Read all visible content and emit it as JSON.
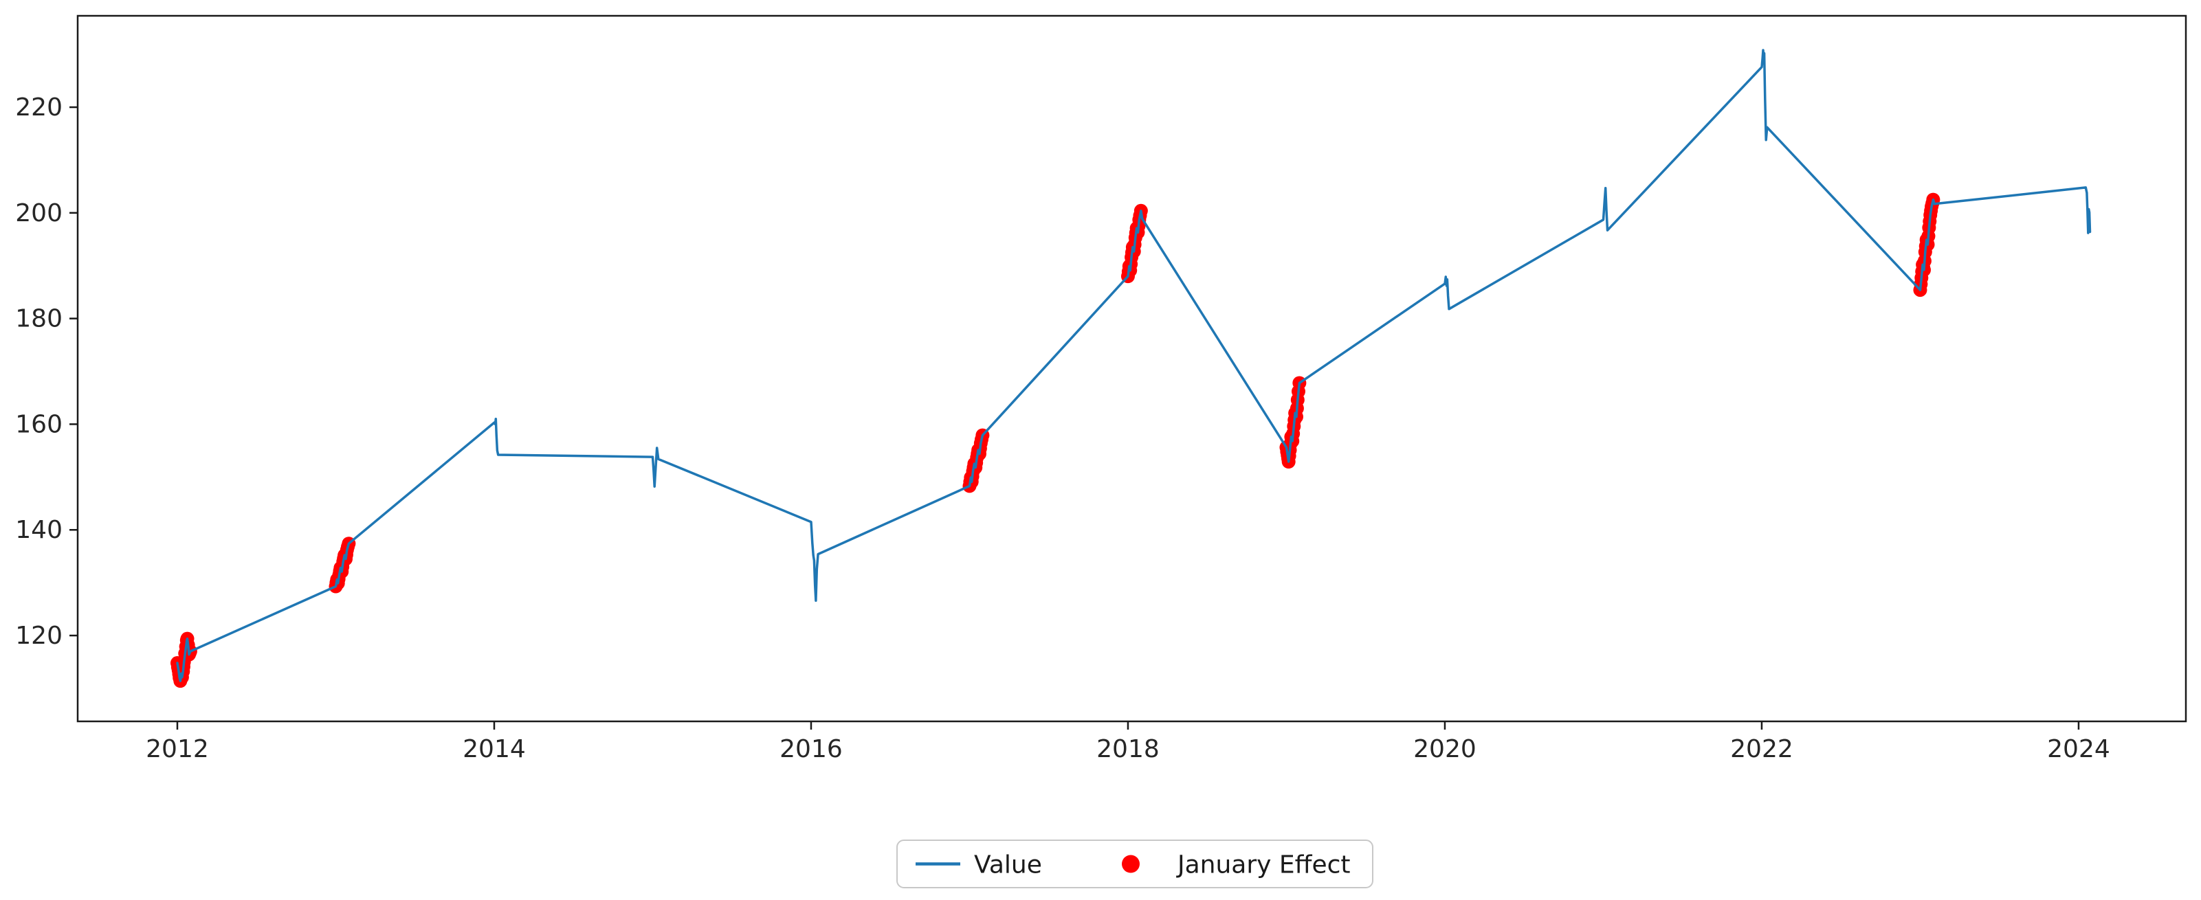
{
  "figure": {
    "background": "#ffffff",
    "spine_color": "#1a1a1a",
    "tick_label_color": "#262626"
  },
  "chart_data": {
    "type": "line",
    "title": "",
    "xlabel": "",
    "ylabel": "",
    "grid": false,
    "x_ticks": [
      2012,
      2014,
      2016,
      2018,
      2020,
      2022,
      2024
    ],
    "y_ticks": [
      120,
      140,
      160,
      180,
      200,
      220
    ],
    "xlim": [
      2011.371,
      2024.677
    ],
    "ylim": [
      103.75,
      237.3
    ],
    "legend": {
      "position": "bottom-center",
      "entries": [
        {
          "label": "Value",
          "type": "line",
          "color": "#1f77b4"
        },
        {
          "label": "January Effect",
          "type": "dot",
          "color": "#ff0000"
        }
      ]
    },
    "series": [
      {
        "name": "Value",
        "color": "#1f77b4",
        "line_width": 3.5,
        "points": [
          [
            2012.0,
            114.8
          ],
          [
            2012.008,
            113.4
          ],
          [
            2012.014,
            112.0
          ],
          [
            2012.019,
            111.4
          ],
          [
            2012.025,
            112.8
          ],
          [
            2012.03,
            112.1
          ],
          [
            2012.036,
            113.2
          ],
          [
            2012.042,
            115.0
          ],
          [
            2012.049,
            116.6
          ],
          [
            2012.055,
            117.9
          ],
          [
            2012.06,
            119.1
          ],
          [
            2012.063,
            119.4
          ],
          [
            2012.068,
            118.2
          ],
          [
            2012.074,
            116.4
          ],
          [
            2012.082,
            117.0
          ],
          [
            2013.0,
            129.3
          ],
          [
            2013.008,
            130.6
          ],
          [
            2013.014,
            129.9
          ],
          [
            2013.022,
            131.5
          ],
          [
            2013.03,
            132.8
          ],
          [
            2013.038,
            132.1
          ],
          [
            2013.047,
            134.0
          ],
          [
            2013.055,
            135.2
          ],
          [
            2013.063,
            134.5
          ],
          [
            2013.071,
            136.2
          ],
          [
            2013.082,
            137.4
          ],
          [
            2014.0,
            160.3
          ],
          [
            2014.006,
            160.0
          ],
          [
            2014.01,
            161.0
          ],
          [
            2014.014,
            158.0
          ],
          [
            2014.019,
            155.0
          ],
          [
            2014.025,
            154.2
          ],
          [
            2015.0,
            153.8
          ],
          [
            2015.006,
            151.2
          ],
          [
            2015.012,
            148.2
          ],
          [
            2015.019,
            151.8
          ],
          [
            2015.027,
            155.5
          ],
          [
            2015.036,
            153.4
          ],
          [
            2016.0,
            141.5
          ],
          [
            2016.008,
            137.5
          ],
          [
            2016.014,
            135.2
          ],
          [
            2016.019,
            134.2
          ],
          [
            2016.025,
            129.5
          ],
          [
            2016.03,
            126.6
          ],
          [
            2016.036,
            132.5
          ],
          [
            2016.044,
            135.4
          ],
          [
            2017.0,
            148.3
          ],
          [
            2017.008,
            149.9
          ],
          [
            2017.014,
            149.1
          ],
          [
            2017.022,
            151.1
          ],
          [
            2017.03,
            152.5
          ],
          [
            2017.038,
            151.8
          ],
          [
            2017.047,
            153.7
          ],
          [
            2017.055,
            155.1
          ],
          [
            2017.063,
            154.4
          ],
          [
            2017.071,
            156.4
          ],
          [
            2017.082,
            157.9
          ],
          [
            2018.0,
            188.0
          ],
          [
            2018.008,
            189.9
          ],
          [
            2018.014,
            189.1
          ],
          [
            2018.022,
            191.6
          ],
          [
            2018.03,
            193.5
          ],
          [
            2018.038,
            192.7
          ],
          [
            2018.047,
            195.3
          ],
          [
            2018.055,
            197.1
          ],
          [
            2018.063,
            196.3
          ],
          [
            2018.071,
            198.7
          ],
          [
            2018.082,
            200.4
          ],
          [
            2018.09,
            198.9
          ],
          [
            2019.0,
            155.6
          ],
          [
            2019.008,
            154.1
          ],
          [
            2019.014,
            152.9
          ],
          [
            2019.022,
            155.1
          ],
          [
            2019.03,
            157.6
          ],
          [
            2019.038,
            156.8
          ],
          [
            2019.047,
            159.6
          ],
          [
            2019.055,
            162.1
          ],
          [
            2019.063,
            161.4
          ],
          [
            2019.071,
            164.6
          ],
          [
            2019.082,
            167.8
          ],
          [
            2020.0,
            186.6
          ],
          [
            2020.006,
            187.9
          ],
          [
            2020.011,
            186.2
          ],
          [
            2020.015,
            187.4
          ],
          [
            2020.02,
            184.3
          ],
          [
            2020.026,
            181.8
          ],
          [
            2021.0,
            198.7
          ],
          [
            2021.008,
            202.2
          ],
          [
            2021.014,
            204.7
          ],
          [
            2021.02,
            200.3
          ],
          [
            2021.026,
            196.7
          ],
          [
            2022.0,
            227.6
          ],
          [
            2022.005,
            229.2
          ],
          [
            2022.009,
            230.8
          ],
          [
            2022.013,
            229.4
          ],
          [
            2022.016,
            230.2
          ],
          [
            2022.021,
            221.5
          ],
          [
            2022.027,
            213.8
          ],
          [
            2022.034,
            216.2
          ],
          [
            2023.0,
            185.4
          ],
          [
            2023.008,
            187.7
          ],
          [
            2023.016,
            190.2
          ],
          [
            2023.024,
            189.2
          ],
          [
            2023.032,
            192.6
          ],
          [
            2023.04,
            194.9
          ],
          [
            2023.048,
            194.0
          ],
          [
            2023.056,
            197.2
          ],
          [
            2023.064,
            199.6
          ],
          [
            2023.072,
            201.2
          ],
          [
            2023.082,
            202.5
          ],
          [
            2023.09,
            201.7
          ],
          [
            2024.045,
            204.8
          ],
          [
            2024.052,
            203.8
          ],
          [
            2024.056,
            200.2
          ],
          [
            2024.06,
            196.2
          ],
          [
            2024.064,
            200.7
          ],
          [
            2024.068,
            200.1
          ],
          [
            2024.072,
            196.4
          ]
        ]
      }
    ],
    "scatter": {
      "name": "January Effect",
      "color": "#ff0000",
      "marker_radius": 10,
      "points": [
        [
          2012.0,
          114.8
        ],
        [
          2012.004,
          114.0
        ],
        [
          2012.008,
          113.4
        ],
        [
          2012.011,
          112.7
        ],
        [
          2012.014,
          112.0
        ],
        [
          2012.019,
          111.4
        ],
        [
          2012.022,
          112.1
        ],
        [
          2012.025,
          112.8
        ],
        [
          2012.03,
          112.1
        ],
        [
          2012.036,
          113.2
        ],
        [
          2012.039,
          114.1
        ],
        [
          2012.042,
          115.0
        ],
        [
          2012.049,
          116.6
        ],
        [
          2012.055,
          117.9
        ],
        [
          2012.06,
          119.1
        ],
        [
          2012.063,
          119.4
        ],
        [
          2012.068,
          118.2
        ],
        [
          2012.071,
          117.3
        ],
        [
          2012.074,
          116.4
        ],
        [
          2012.078,
          116.7
        ],
        [
          2012.082,
          117.0
        ],
        [
          2013.0,
          129.3
        ],
        [
          2013.004,
          130.0
        ],
        [
          2013.008,
          130.6
        ],
        [
          2013.011,
          130.2
        ],
        [
          2013.014,
          129.9
        ],
        [
          2013.018,
          130.7
        ],
        [
          2013.022,
          131.5
        ],
        [
          2013.026,
          132.2
        ],
        [
          2013.03,
          132.8
        ],
        [
          2013.034,
          132.4
        ],
        [
          2013.038,
          132.1
        ],
        [
          2013.042,
          133.0
        ],
        [
          2013.047,
          134.0
        ],
        [
          2013.051,
          134.6
        ],
        [
          2013.055,
          135.2
        ],
        [
          2013.059,
          134.8
        ],
        [
          2013.063,
          134.5
        ],
        [
          2013.067,
          135.3
        ],
        [
          2013.071,
          136.2
        ],
        [
          2013.076,
          136.8
        ],
        [
          2013.082,
          137.4
        ],
        [
          2017.0,
          148.3
        ],
        [
          2017.004,
          149.1
        ],
        [
          2017.008,
          149.9
        ],
        [
          2017.011,
          149.5
        ],
        [
          2017.014,
          149.1
        ],
        [
          2017.018,
          150.1
        ],
        [
          2017.022,
          151.1
        ],
        [
          2017.026,
          151.8
        ],
        [
          2017.03,
          152.5
        ],
        [
          2017.034,
          152.1
        ],
        [
          2017.038,
          151.8
        ],
        [
          2017.042,
          152.7
        ],
        [
          2017.047,
          153.7
        ],
        [
          2017.051,
          154.4
        ],
        [
          2017.055,
          155.1
        ],
        [
          2017.059,
          154.7
        ],
        [
          2017.063,
          154.4
        ],
        [
          2017.067,
          155.4
        ],
        [
          2017.071,
          156.4
        ],
        [
          2017.076,
          157.1
        ],
        [
          2017.082,
          157.9
        ],
        [
          2018.0,
          188.0
        ],
        [
          2018.004,
          188.9
        ],
        [
          2018.008,
          189.9
        ],
        [
          2018.011,
          189.5
        ],
        [
          2018.014,
          189.1
        ],
        [
          2018.018,
          190.3
        ],
        [
          2018.022,
          191.6
        ],
        [
          2018.026,
          192.5
        ],
        [
          2018.03,
          193.5
        ],
        [
          2018.034,
          193.1
        ],
        [
          2018.038,
          192.7
        ],
        [
          2018.042,
          194.0
        ],
        [
          2018.047,
          195.3
        ],
        [
          2018.051,
          196.2
        ],
        [
          2018.055,
          197.1
        ],
        [
          2018.059,
          196.7
        ],
        [
          2018.063,
          196.3
        ],
        [
          2018.067,
          197.5
        ],
        [
          2018.071,
          198.7
        ],
        [
          2018.076,
          199.5
        ],
        [
          2018.082,
          200.4
        ],
        [
          2019.0,
          155.6
        ],
        [
          2019.004,
          154.8
        ],
        [
          2019.008,
          154.1
        ],
        [
          2019.011,
          153.5
        ],
        [
          2019.014,
          152.9
        ],
        [
          2019.018,
          154.0
        ],
        [
          2019.022,
          155.1
        ],
        [
          2019.026,
          156.3
        ],
        [
          2019.03,
          157.6
        ],
        [
          2019.034,
          157.2
        ],
        [
          2019.038,
          156.8
        ],
        [
          2019.042,
          158.2
        ],
        [
          2019.047,
          159.6
        ],
        [
          2019.051,
          160.8
        ],
        [
          2019.055,
          162.1
        ],
        [
          2019.059,
          161.7
        ],
        [
          2019.063,
          161.4
        ],
        [
          2019.067,
          163.0
        ],
        [
          2019.071,
          164.6
        ],
        [
          2019.076,
          166.2
        ],
        [
          2019.082,
          167.8
        ],
        [
          2023.0,
          185.4
        ],
        [
          2023.004,
          186.5
        ],
        [
          2023.008,
          187.7
        ],
        [
          2023.012,
          188.9
        ],
        [
          2023.016,
          190.2
        ],
        [
          2023.02,
          189.7
        ],
        [
          2023.024,
          189.2
        ],
        [
          2023.028,
          190.9
        ],
        [
          2023.032,
          192.6
        ],
        [
          2023.036,
          193.7
        ],
        [
          2023.04,
          194.9
        ],
        [
          2023.044,
          194.4
        ],
        [
          2023.048,
          194.0
        ],
        [
          2023.052,
          195.6
        ],
        [
          2023.056,
          197.2
        ],
        [
          2023.06,
          198.4
        ],
        [
          2023.064,
          199.6
        ],
        [
          2023.068,
          200.4
        ],
        [
          2023.072,
          201.2
        ],
        [
          2023.077,
          201.8
        ],
        [
          2023.082,
          202.5
        ]
      ]
    }
  }
}
